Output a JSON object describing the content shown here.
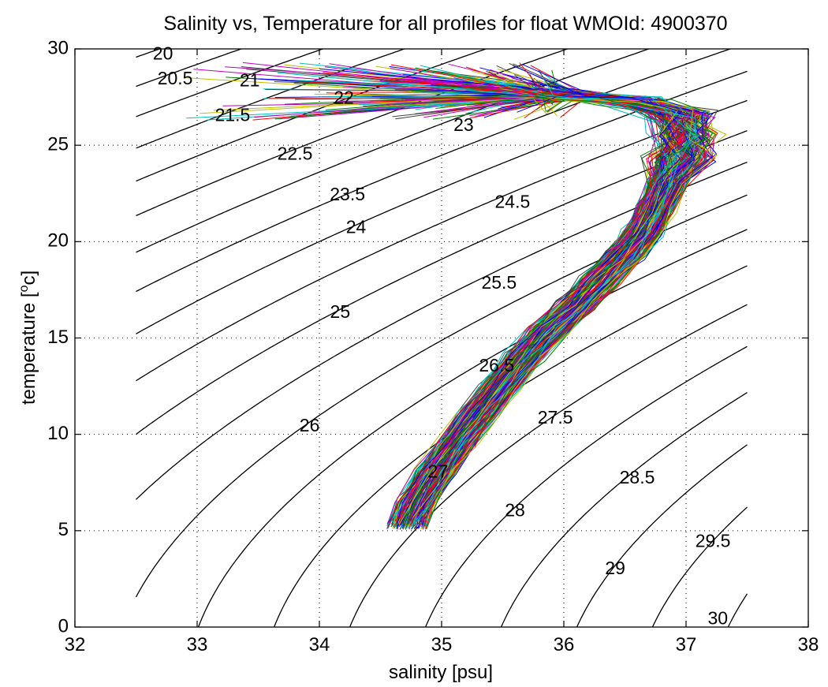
{
  "chart_data": {
    "type": "line",
    "title": "Salinity vs, Temperature for all profiles for float WMOId: 4900370",
    "xlabel": "salinity [psu]",
    "ylabel_main": "temperature [",
    "ylabel_sup": "o",
    "ylabel_tail": "c]",
    "xlim": [
      32,
      38
    ],
    "ylim": [
      0,
      30
    ],
    "xticks": [
      32,
      33,
      34,
      35,
      36,
      37,
      38
    ],
    "yticks": [
      0,
      5,
      10,
      15,
      20,
      25,
      30
    ],
    "xtick_labels": [
      "32",
      "33",
      "34",
      "35",
      "36",
      "37",
      "38"
    ],
    "ytick_labels": [
      "0",
      "5",
      "10",
      "15",
      "20",
      "25",
      "30"
    ],
    "grid": true,
    "grid_style": "dotted",
    "density_contours": {
      "color": "#000000",
      "salinity_range": [
        32.5,
        37.5
      ],
      "levels": [
        20,
        20.5,
        21,
        21.5,
        22,
        22.5,
        23,
        23.5,
        24,
        24.5,
        25,
        25.5,
        26,
        26.5,
        27,
        27.5,
        28,
        28.5,
        29,
        29.5,
        30
      ],
      "labels": [
        {
          "text": "20",
          "s": 32.72,
          "t": 29.7
        },
        {
          "text": "20.5",
          "s": 32.82,
          "t": 28.4
        },
        {
          "text": "21",
          "s": 33.43,
          "t": 28.3
        },
        {
          "text": "21.5",
          "s": 33.29,
          "t": 26.5
        },
        {
          "text": "22",
          "s": 34.2,
          "t": 27.4
        },
        {
          "text": "22.5",
          "s": 33.8,
          "t": 24.5
        },
        {
          "text": "23",
          "s": 35.18,
          "t": 26.0
        },
        {
          "text": "23.5",
          "s": 34.23,
          "t": 22.4
        },
        {
          "text": "24",
          "s": 34.3,
          "t": 20.7
        },
        {
          "text": "24.5",
          "s": 35.58,
          "t": 22.0
        },
        {
          "text": "25",
          "s": 34.17,
          "t": 16.3
        },
        {
          "text": "25.5",
          "s": 35.47,
          "t": 17.8
        },
        {
          "text": "26",
          "s": 33.92,
          "t": 10.4
        },
        {
          "text": "26.5",
          "s": 35.45,
          "t": 13.5
        },
        {
          "text": "27",
          "s": 34.97,
          "t": 8.0
        },
        {
          "text": "27.5",
          "s": 35.93,
          "t": 10.8
        },
        {
          "text": "28",
          "s": 35.6,
          "t": 6.0
        },
        {
          "text": "28.5",
          "s": 36.6,
          "t": 7.7
        },
        {
          "text": "29",
          "s": 36.42,
          "t": 3.0
        },
        {
          "text": "29.5",
          "s": 37.22,
          "t": 4.4
        },
        {
          "text": "30",
          "s": 37.26,
          "t": 0.4
        }
      ]
    },
    "profiles": {
      "count": 200,
      "colors": [
        "#0000ff",
        "#008000",
        "#ff0000",
        "#00bfbf",
        "#bf00bf",
        "#bfbf00",
        "#404040"
      ],
      "mean_curve": [
        {
          "s": 34.72,
          "t": 5.3
        },
        {
          "s": 34.8,
          "t": 6.5
        },
        {
          "s": 34.95,
          "t": 8.0
        },
        {
          "s": 35.12,
          "t": 9.5
        },
        {
          "s": 35.3,
          "t": 11.0
        },
        {
          "s": 35.48,
          "t": 12.5
        },
        {
          "s": 35.68,
          "t": 14.0
        },
        {
          "s": 35.88,
          "t": 15.4
        },
        {
          "s": 36.1,
          "t": 16.7
        },
        {
          "s": 36.3,
          "t": 18.0
        },
        {
          "s": 36.5,
          "t": 19.3
        },
        {
          "s": 36.65,
          "t": 20.5
        },
        {
          "s": 36.75,
          "t": 21.7
        },
        {
          "s": 36.85,
          "t": 23.0
        },
        {
          "s": 36.95,
          "t": 24.3
        },
        {
          "s": 37.0,
          "t": 25.5
        },
        {
          "s": 36.95,
          "t": 26.6
        },
        {
          "s": 36.6,
          "t": 27.3
        },
        {
          "s": 36.0,
          "t": 27.6
        }
      ]
    }
  }
}
